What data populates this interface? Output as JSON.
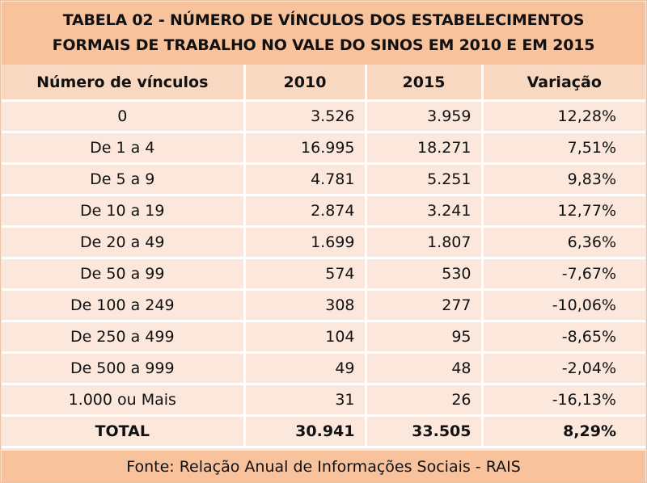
{
  "title": {
    "line1": "TABELA 02 - NÚMERO DE VÍNCULOS DOS ESTABELECIMENTOS",
    "line2": "FORMAIS DE TRABALHO NO VALE DO SINOS EM 2010 E EM 2015"
  },
  "table": {
    "headers": [
      "Número de vínculos",
      "2010",
      "2015",
      "Variação"
    ],
    "rows": [
      [
        "0",
        "3.526",
        "3.959",
        "12,28%"
      ],
      [
        "De 1 a 4",
        "16.995",
        "18.271",
        "7,51%"
      ],
      [
        "De 5 a 9",
        "4.781",
        "5.251",
        "9,83%"
      ],
      [
        "De 10 a 19",
        "2.874",
        "3.241",
        "12,77%"
      ],
      [
        "De 20 a 49",
        "1.699",
        "1.807",
        "6,36%"
      ],
      [
        "De 50 a 99",
        "574",
        "530",
        "-7,67%"
      ],
      [
        "De 100 a 249",
        "308",
        "277",
        "-10,06%"
      ],
      [
        "De 250 a 499",
        "104",
        "95",
        "-8,65%"
      ],
      [
        "De 500 a 999",
        "49",
        "48",
        "-2,04%"
      ],
      [
        "1.000 ou Mais",
        "31",
        "26",
        "-16,13%"
      ]
    ],
    "total": [
      "TOTAL",
      "30.941",
      "33.505",
      "8,29%"
    ]
  },
  "footer": "Fonte: Relação Anual de Informações Sociais - RAIS",
  "colors": {
    "title_bg": "#f8c29c",
    "header_bg": "#f9d8c2",
    "cell_bg": "#fbe7dc",
    "grid": "#ffffff"
  }
}
